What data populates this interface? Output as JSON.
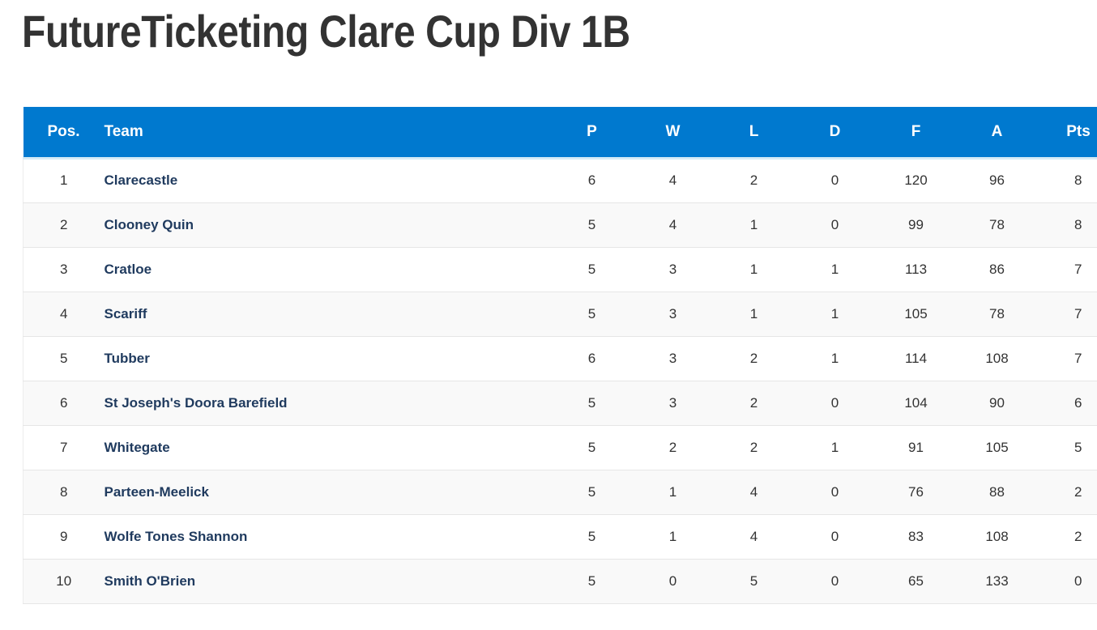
{
  "page": {
    "title": "FutureTicketing Clare Cup Div 1B"
  },
  "table": {
    "headers": {
      "pos": "Pos.",
      "team": "Team",
      "p": "P",
      "w": "W",
      "l": "L",
      "d": "D",
      "f": "F",
      "a": "A",
      "pts": "Pts"
    },
    "rows": [
      {
        "pos": "1",
        "team": "Clarecastle",
        "p": "6",
        "w": "4",
        "l": "2",
        "d": "0",
        "f": "120",
        "a": "96",
        "pts": "8"
      },
      {
        "pos": "2",
        "team": "Clooney Quin",
        "p": "5",
        "w": "4",
        "l": "1",
        "d": "0",
        "f": "99",
        "a": "78",
        "pts": "8"
      },
      {
        "pos": "3",
        "team": "Cratloe",
        "p": "5",
        "w": "3",
        "l": "1",
        "d": "1",
        "f": "113",
        "a": "86",
        "pts": "7"
      },
      {
        "pos": "4",
        "team": "Scariff",
        "p": "5",
        "w": "3",
        "l": "1",
        "d": "1",
        "f": "105",
        "a": "78",
        "pts": "7"
      },
      {
        "pos": "5",
        "team": "Tubber",
        "p": "6",
        "w": "3",
        "l": "2",
        "d": "1",
        "f": "114",
        "a": "108",
        "pts": "7"
      },
      {
        "pos": "6",
        "team": "St Joseph's Doora Barefield",
        "p": "5",
        "w": "3",
        "l": "2",
        "d": "0",
        "f": "104",
        "a": "90",
        "pts": "6"
      },
      {
        "pos": "7",
        "team": "Whitegate",
        "p": "5",
        "w": "2",
        "l": "2",
        "d": "1",
        "f": "91",
        "a": "105",
        "pts": "5"
      },
      {
        "pos": "8",
        "team": "Parteen-Meelick",
        "p": "5",
        "w": "1",
        "l": "4",
        "d": "0",
        "f": "76",
        "a": "88",
        "pts": "2"
      },
      {
        "pos": "9",
        "team": "Wolfe Tones Shannon",
        "p": "5",
        "w": "1",
        "l": "4",
        "d": "0",
        "f": "83",
        "a": "108",
        "pts": "2"
      },
      {
        "pos": "10",
        "team": "Smith O'Brien",
        "p": "5",
        "w": "0",
        "l": "5",
        "d": "0",
        "f": "65",
        "a": "133",
        "pts": "0"
      }
    ]
  },
  "colors": {
    "header_bg": "#0079cf",
    "header_text": "#ffffff",
    "team_link": "#1f3a5e",
    "title": "#333333"
  }
}
